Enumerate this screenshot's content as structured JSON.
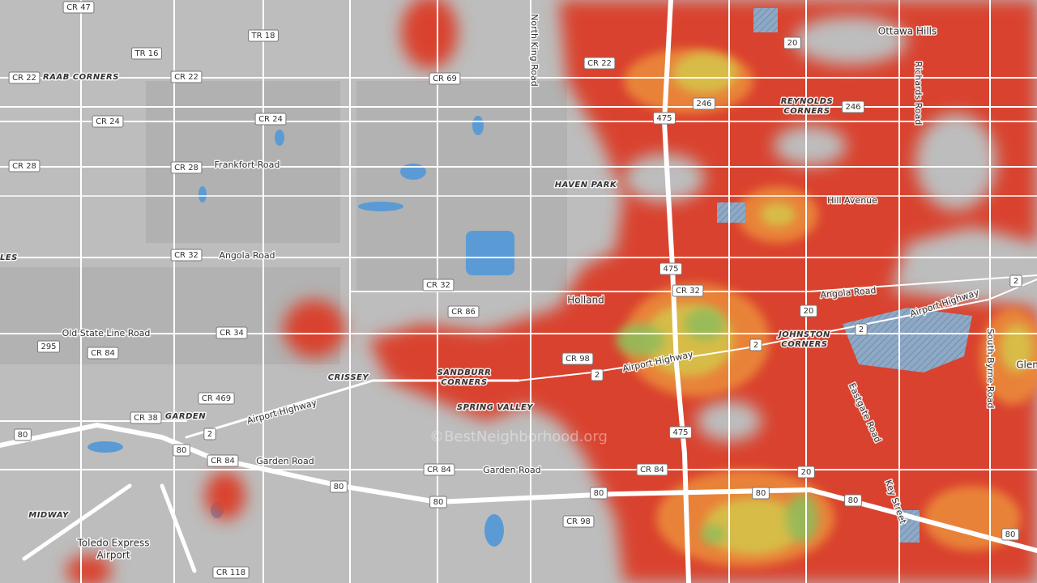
{
  "shields": [
    "CR 47",
    "TR 18",
    "TR 16",
    "CR 22",
    "CR 22",
    "CR 69",
    "CR 22",
    "20",
    "246",
    "246",
    "475",
    "CR 24",
    "CR 24",
    "CR 28",
    "CR 28",
    "CR 32",
    "475",
    "CR 32",
    "CR 32",
    "CR 86",
    "20",
    "2",
    "2",
    "CR 34",
    "295",
    "CR 84",
    "CR 98",
    "2",
    "CR 469",
    "CR 38",
    "2",
    "80",
    "80",
    "475",
    "CR 84",
    "CR 84",
    "CR 84",
    "80",
    "80",
    "80",
    "20",
    "80",
    "80",
    "CR 98",
    "80",
    "CR 118",
    "2"
  ],
  "places": [
    "Ottawa Hills",
    "REYNOLDS",
    "CORNERS",
    "HAVEN PARK",
    "Holland",
    "JOHNSTON",
    "CORNERS",
    "CRISSEY",
    "SANDBURR",
    "CORNERS",
    "SPRING VALLEY",
    "GARDEN",
    "MIDWAY",
    "Toledo Express",
    "Airport",
    "RAAB CORNERS",
    "PLES",
    "Glen"
  ],
  "streets": [
    "North King Road",
    "Frankfort Road",
    "Angola Road",
    "Old State Line Road",
    "Airport Highway",
    "Garden Road",
    "Garden Road",
    "Hill Avenue",
    "Angola Road",
    "Airport Highway",
    "Airport Highway",
    "Richards Road",
    "South Byrne Road",
    "Eastgate Road",
    "Key Street"
  ],
  "watermark": "©BestNeighborhood.org"
}
